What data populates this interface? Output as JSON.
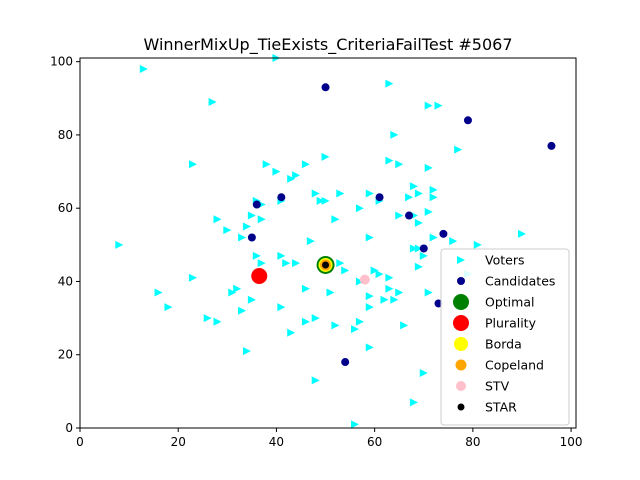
{
  "chart_data": {
    "type": "scatter",
    "title": "WinnerMixUp_TieExists_CriteriaFailTest #5067",
    "xlabel": "",
    "ylabel": "",
    "xlim": [
      0,
      101
    ],
    "ylim": [
      0,
      101
    ],
    "xticks": [
      "0",
      "20",
      "40",
      "60",
      "80",
      "100"
    ],
    "yticks": [
      "0",
      "20",
      "40",
      "60",
      "80",
      "100"
    ],
    "grid": false,
    "legend_position": "lower-right",
    "series": [
      {
        "name": "Voters",
        "marker": "triangle-right",
        "color": "#00ffff",
        "points": [
          [
            13,
            98
          ],
          [
            40,
            101
          ],
          [
            63,
            94
          ],
          [
            27,
            89
          ],
          [
            71,
            88
          ],
          [
            73,
            88
          ],
          [
            77,
            76
          ],
          [
            64,
            80
          ],
          [
            23,
            72
          ],
          [
            38,
            72
          ],
          [
            46,
            72
          ],
          [
            50,
            74
          ],
          [
            63,
            73
          ],
          [
            65,
            72
          ],
          [
            71,
            71
          ],
          [
            40,
            70
          ],
          [
            43,
            68
          ],
          [
            44,
            69
          ],
          [
            48,
            64
          ],
          [
            53,
            64
          ],
          [
            59,
            64
          ],
          [
            61,
            62
          ],
          [
            68,
            66
          ],
          [
            72,
            65
          ],
          [
            67,
            63
          ],
          [
            69,
            64
          ],
          [
            50,
            62
          ],
          [
            49,
            62
          ],
          [
            72,
            63
          ],
          [
            36,
            62
          ],
          [
            41,
            62
          ],
          [
            37,
            61
          ],
          [
            57,
            60
          ],
          [
            65,
            58
          ],
          [
            68,
            58
          ],
          [
            71,
            59
          ],
          [
            69,
            56
          ],
          [
            28,
            57
          ],
          [
            35,
            58
          ],
          [
            37,
            57
          ],
          [
            30,
            54
          ],
          [
            34,
            55
          ],
          [
            52,
            57
          ],
          [
            33,
            52
          ],
          [
            47,
            51
          ],
          [
            59,
            52
          ],
          [
            72,
            52
          ],
          [
            76,
            51
          ],
          [
            68,
            49
          ],
          [
            69,
            49
          ],
          [
            81,
            50
          ],
          [
            90,
            53
          ],
          [
            8,
            50
          ],
          [
            36,
            47
          ],
          [
            41,
            47
          ],
          [
            70,
            47
          ],
          [
            42,
            45
          ],
          [
            37,
            45
          ],
          [
            44,
            45
          ],
          [
            53,
            45
          ],
          [
            23,
            41
          ],
          [
            54,
            43
          ],
          [
            57,
            40
          ],
          [
            60,
            43
          ],
          [
            61,
            42
          ],
          [
            63,
            41
          ],
          [
            69,
            44
          ],
          [
            79,
            42
          ],
          [
            16,
            37
          ],
          [
            18,
            33
          ],
          [
            32,
            38
          ],
          [
            31,
            37
          ],
          [
            46,
            38
          ],
          [
            51,
            37
          ],
          [
            59,
            36
          ],
          [
            63,
            38
          ],
          [
            65,
            37
          ],
          [
            71,
            37
          ],
          [
            35,
            35
          ],
          [
            41,
            33
          ],
          [
            33,
            32
          ],
          [
            59,
            33
          ],
          [
            62,
            35
          ],
          [
            64,
            35
          ],
          [
            26,
            30
          ],
          [
            28,
            29
          ],
          [
            43,
            26
          ],
          [
            46,
            29
          ],
          [
            48,
            30
          ],
          [
            52,
            28
          ],
          [
            56,
            27
          ],
          [
            57,
            29
          ],
          [
            66,
            28
          ],
          [
            34,
            21
          ],
          [
            48,
            13
          ],
          [
            59,
            22
          ],
          [
            70,
            15
          ],
          [
            68,
            7
          ],
          [
            56,
            1
          ]
        ]
      },
      {
        "name": "Candidates",
        "marker": "circle",
        "color": "#00008b",
        "points": [
          [
            50,
            93
          ],
          [
            79,
            84
          ],
          [
            96,
            77
          ],
          [
            36,
            61
          ],
          [
            41,
            63
          ],
          [
            61,
            63
          ],
          [
            67,
            58
          ],
          [
            74,
            53
          ],
          [
            35,
            52
          ],
          [
            70,
            49
          ],
          [
            54,
            18
          ],
          [
            73,
            34
          ]
        ]
      },
      {
        "name": "Optimal",
        "marker": "circle",
        "color": "#008000",
        "points": [
          [
            50,
            44.5
          ]
        ]
      },
      {
        "name": "Plurality",
        "marker": "circle",
        "color": "#ff0000",
        "points": [
          [
            36.5,
            41.5
          ]
        ]
      },
      {
        "name": "Borda",
        "marker": "circle",
        "color": "#ffff00",
        "points": [
          [
            50,
            44.5
          ]
        ]
      },
      {
        "name": "Copeland",
        "marker": "circle",
        "color": "#ffa500",
        "points": [
          [
            50,
            44.5
          ]
        ]
      },
      {
        "name": "STV",
        "marker": "circle",
        "color": "#ffc0cb",
        "points": [
          [
            58,
            40.5
          ]
        ]
      },
      {
        "name": "STAR",
        "marker": "circle",
        "color": "#000000",
        "points": [
          [
            50,
            44.5
          ]
        ]
      }
    ]
  }
}
